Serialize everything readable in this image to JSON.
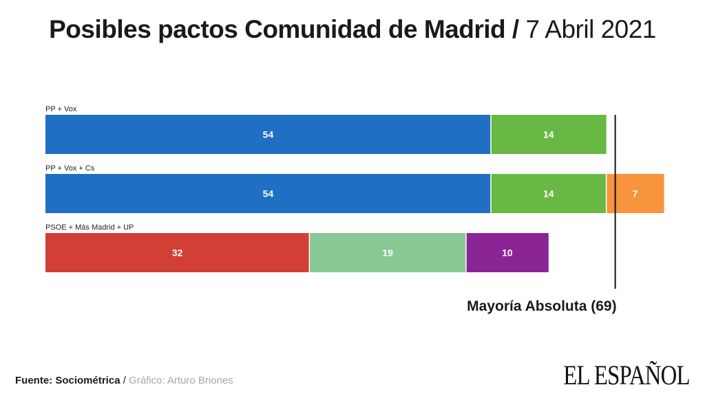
{
  "header": {
    "title_main": "Posibles pactos Comunidad de Madrid",
    "title_sep": " / ",
    "title_date": "7 Abril 2021"
  },
  "footer": {
    "source_label": "Fuente: Sociométrica",
    "separator": " / ",
    "credit": "Gráfico: Arturo Briones"
  },
  "logo": {
    "text": "EL ESPAÑOL"
  },
  "chart_data": {
    "type": "bar",
    "orientation": "horizontal",
    "stacked": true,
    "title": "Posibles pactos Comunidad de Madrid / 7 Abril 2021",
    "xlim": [
      0,
      75
    ],
    "grid": false,
    "legend": "none",
    "rows": [
      {
        "label": "PP + Vox",
        "segments": [
          {
            "value": 54,
            "color": "#1f6fc4"
          },
          {
            "value": 14,
            "color": "#68b944"
          }
        ]
      },
      {
        "label": "PP + Vox + Cs",
        "segments": [
          {
            "value": 54,
            "color": "#1f6fc4"
          },
          {
            "value": 14,
            "color": "#68b944"
          },
          {
            "value": 7,
            "color": "#f7943d"
          }
        ]
      },
      {
        "label": "PSOE + Más Madrid + UP",
        "segments": [
          {
            "value": 32,
            "color": "#d13f35"
          },
          {
            "value": 19,
            "color": "#87c895"
          },
          {
            "value": 10,
            "color": "#8b2596"
          }
        ]
      }
    ],
    "reference_line": {
      "value": 69,
      "label": "Mayoría Absoluta (69)"
    }
  }
}
